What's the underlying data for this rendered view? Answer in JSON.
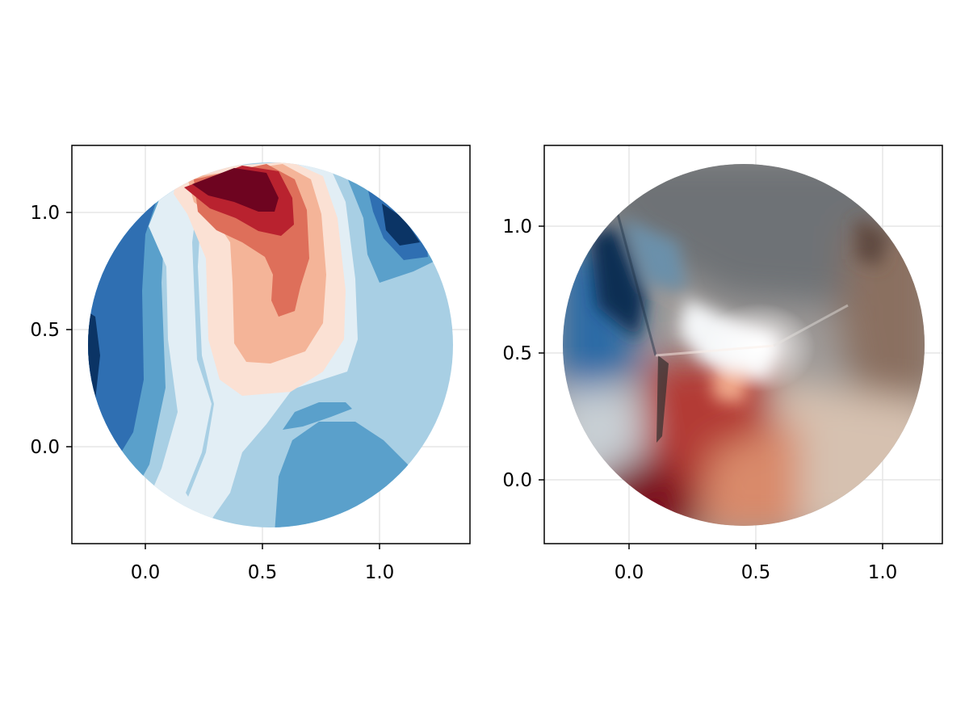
{
  "chart_data": [
    {
      "type": "contour",
      "title": "",
      "xlabel": "",
      "ylabel": "",
      "xlim": [
        -0.315,
        1.38
      ],
      "ylim": [
        -0.415,
        1.28
      ],
      "x_ticks": [
        0.0,
        0.5,
        1.0
      ],
      "y_ticks": [
        0.0,
        0.5,
        1.0
      ],
      "x_tick_labels": [
        "0.0",
        "0.5",
        "1.0"
      ],
      "y_tick_labels": [
        "0.0",
        "0.5",
        "1.0"
      ],
      "grid": true,
      "domain": {
        "shape": "circle",
        "center": [
          0.5,
          0.43
        ],
        "radius": 0.78
      },
      "colormap": "RdBu",
      "levels": 9,
      "colors": [
        "#053061",
        "#2166ac",
        "#4393c3",
        "#92c5de",
        "#d1e5f0",
        "#fddbc7",
        "#f4a582",
        "#d6604d",
        "#b2182b",
        "#67001f"
      ],
      "features": [
        {
          "kind": "max",
          "x": 0.35,
          "y": 1.05,
          "level": 9
        },
        {
          "kind": "min",
          "x": 1.12,
          "y": 0.93,
          "level": 0
        },
        {
          "kind": "min",
          "x": -0.24,
          "y": 0.36,
          "level": 0
        }
      ]
    },
    {
      "type": "heatmap",
      "title": "",
      "xlabel": "",
      "ylabel": "",
      "xlim": [
        -0.335,
        1.235
      ],
      "ylim": [
        -0.255,
        1.315
      ],
      "x_ticks": [
        0.0,
        0.5,
        1.0
      ],
      "y_ticks": [
        0.0,
        0.5,
        1.0
      ],
      "x_tick_labels": [
        "0.0",
        "0.5",
        "1.0"
      ],
      "y_tick_labels": [
        "0.0",
        "0.5",
        "1.0"
      ],
      "grid": true,
      "domain": {
        "shape": "circle",
        "center": [
          0.45,
          0.54
        ],
        "radius": 0.71
      },
      "colormap": "RdGy-blended",
      "colors": [
        "#0a3a6b",
        "#3a7fb0",
        "#9ab3c2",
        "#ffffff",
        "#d8c4b4",
        "#8c7464",
        "#c03a30",
        "#7a0a1e"
      ],
      "features": [
        {
          "kind": "bright",
          "x": 0.57,
          "y": 0.53
        },
        {
          "kind": "dark-red",
          "x": 0.05,
          "y": 0.0
        },
        {
          "kind": "dark-blue",
          "x": -0.18,
          "y": 0.78
        }
      ]
    }
  ]
}
